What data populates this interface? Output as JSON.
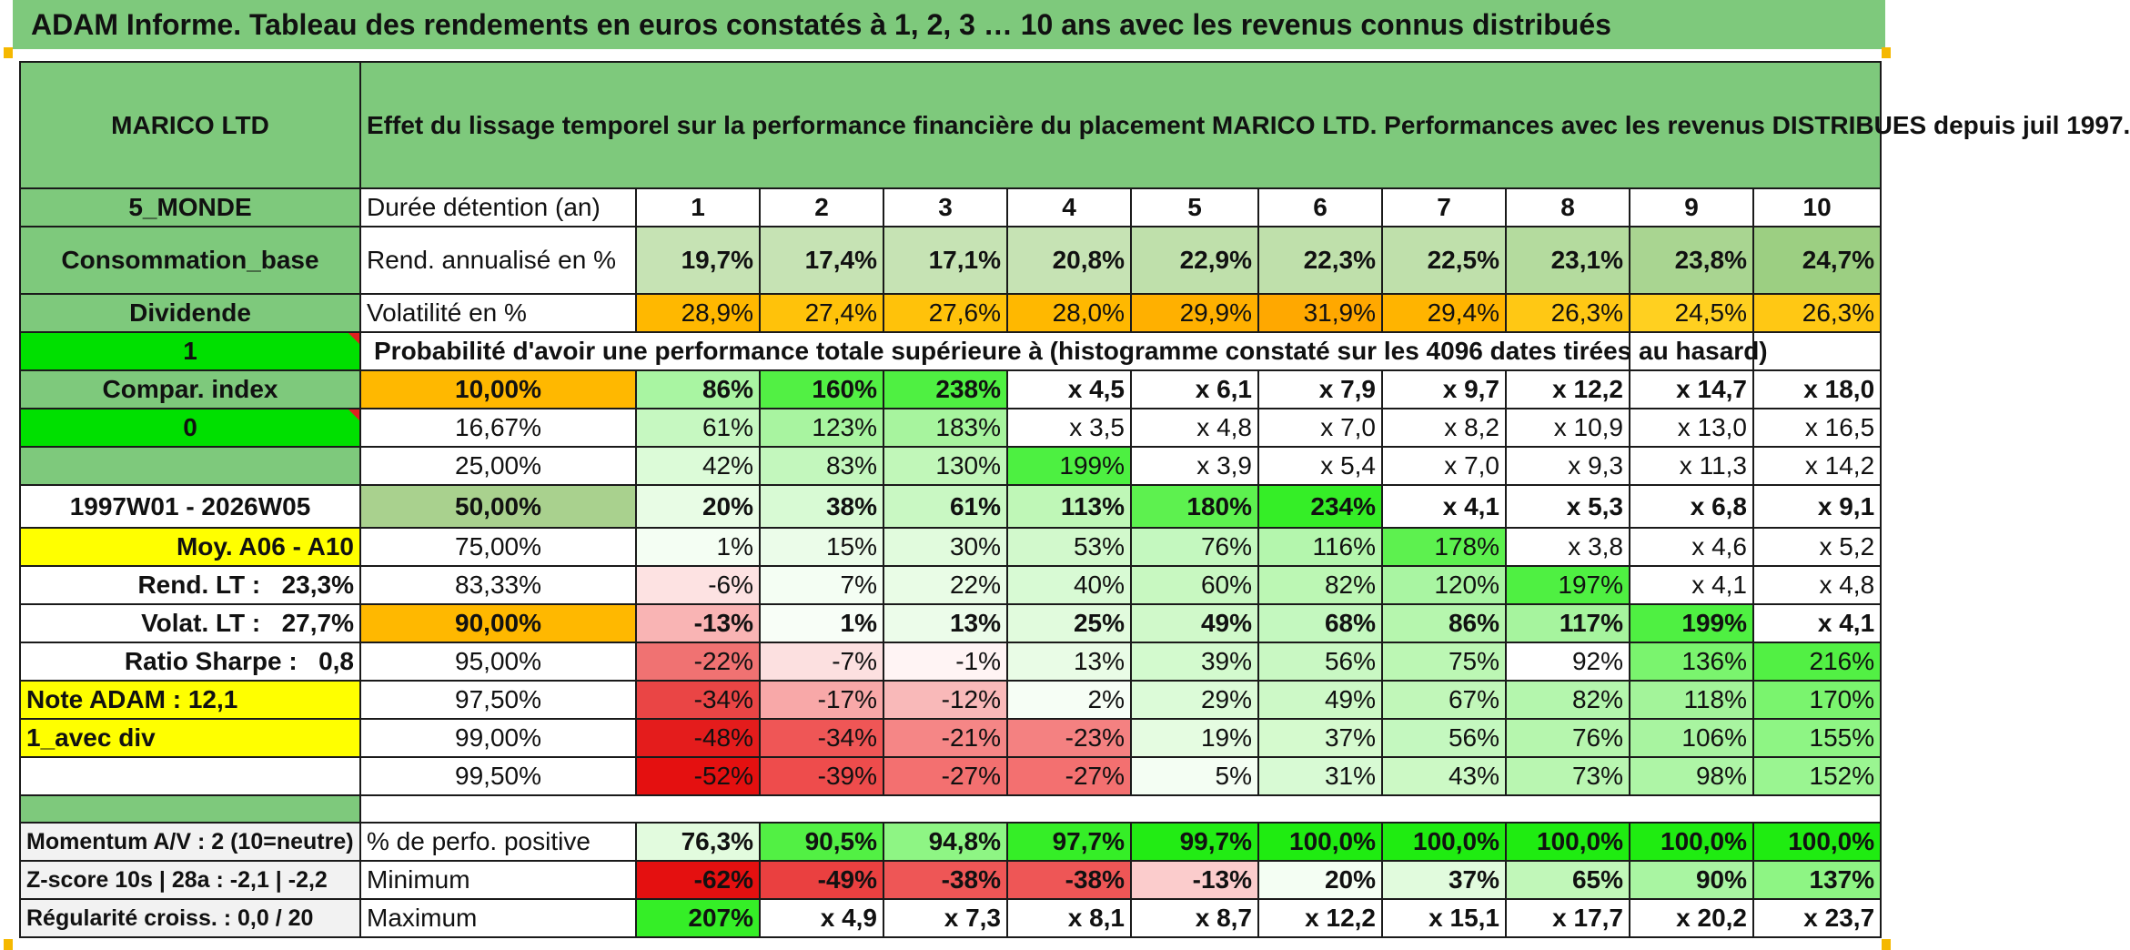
{
  "banner": {
    "title": "ADAM Informe. Tableau des rendements en euros constatés à 1, 2, 3 … 10 ans avec les revenus connus distribués"
  },
  "colors": {
    "green_header": "#7ec97c",
    "orange": "#ffb800",
    "yellow": "#ffff00",
    "bright_green": "#00e000",
    "red_text": "#e01010"
  },
  "left": {
    "name": "MARICO LTD",
    "zone": "5_MONDE",
    "sector": "Consommation_base",
    "dividend_label": "Dividende",
    "flag_value": "1",
    "compar_label": "Compar. index",
    "compar_value": "0",
    "period": "1997W01 - 2026W05",
    "moy_label": "Moy. A06 - A10",
    "rend_lt_label": "Rend. LT :",
    "rend_lt_value": "23,3%",
    "volat_lt_label": "Volat. LT :",
    "volat_lt_value": "27,7%",
    "sharpe_label": "Ratio Sharpe :",
    "sharpe_value": "0,8",
    "note": "Note ADAM : 12,1",
    "option": "1_avec div",
    "momentum": "Momentum A/V : 2 (10=neutre)",
    "zscore": "Z-score 10s | 28a : -2,1 | -2,2",
    "regularite": "Régularité croiss. : 0,0 / 20"
  },
  "header": {
    "description": "Effet du lissage temporel sur la performance financière du placement MARICO LTD. Performances avec les revenus DISTRIBUES depuis juil 1997.",
    "duration_label": "Durée détention (an)",
    "years": [
      "1",
      "2",
      "3",
      "4",
      "5",
      "6",
      "7",
      "8",
      "9",
      "10"
    ]
  },
  "rendement": {
    "label": "Rend. annualisé en %",
    "values": [
      "19,7%",
      "17,4%",
      "17,1%",
      "20,8%",
      "22,9%",
      "22,3%",
      "22,5%",
      "23,1%",
      "23,8%",
      "24,7%"
    ]
  },
  "volatilite": {
    "label": "Volatilité en %",
    "values": [
      "28,9%",
      "27,4%",
      "27,6%",
      "28,0%",
      "29,9%",
      "31,9%",
      "29,4%",
      "26,3%",
      "24,5%",
      "26,3%"
    ]
  },
  "probability_title": "Probabilité d'avoir une performance totale supérieure à (histogramme constaté sur les 4096 dates tirées au hasard)",
  "probability_rows": [
    {
      "pct": "10,00%",
      "values": [
        "86%",
        "160%",
        "238%",
        "x 4,5",
        "x 6,1",
        "x 7,9",
        "x 9,7",
        "x 12,2",
        "x 14,7",
        "x 18,0"
      ]
    },
    {
      "pct": "16,67%",
      "values": [
        "61%",
        "123%",
        "183%",
        "x 3,5",
        "x 4,8",
        "x 7,0",
        "x 8,2",
        "x 10,9",
        "x 13,0",
        "x 16,5"
      ]
    },
    {
      "pct": "25,00%",
      "values": [
        "42%",
        "83%",
        "130%",
        "199%",
        "x 3,9",
        "x 5,4",
        "x 7,0",
        "x 9,3",
        "x 11,3",
        "x 14,2"
      ]
    },
    {
      "pct": "50,00%",
      "values": [
        "20%",
        "38%",
        "61%",
        "113%",
        "180%",
        "234%",
        "x 4,1",
        "x 5,3",
        "x 6,8",
        "x 9,1"
      ]
    },
    {
      "pct": "75,00%",
      "values": [
        "1%",
        "15%",
        "30%",
        "53%",
        "76%",
        "116%",
        "178%",
        "x 3,8",
        "x 4,6",
        "x 5,2"
      ]
    },
    {
      "pct": "83,33%",
      "values": [
        "-6%",
        "7%",
        "22%",
        "40%",
        "60%",
        "82%",
        "120%",
        "197%",
        "x 4,1",
        "x 4,8"
      ]
    },
    {
      "pct": "90,00%",
      "values": [
        "-13%",
        "1%",
        "13%",
        "25%",
        "49%",
        "68%",
        "86%",
        "117%",
        "199%",
        "x 4,1"
      ]
    },
    {
      "pct": "95,00%",
      "values": [
        "-22%",
        "-7%",
        "-1%",
        "13%",
        "39%",
        "56%",
        "75%",
        "92%",
        "136%",
        "216%"
      ]
    },
    {
      "pct": "97,50%",
      "values": [
        "-34%",
        "-17%",
        "-12%",
        "2%",
        "29%",
        "49%",
        "67%",
        "82%",
        "118%",
        "170%"
      ]
    },
    {
      "pct": "99,00%",
      "values": [
        "-48%",
        "-34%",
        "-21%",
        "-23%",
        "19%",
        "37%",
        "56%",
        "76%",
        "106%",
        "155%"
      ]
    },
    {
      "pct": "99,50%",
      "values": [
        "-52%",
        "-39%",
        "-27%",
        "-27%",
        "5%",
        "31%",
        "43%",
        "73%",
        "98%",
        "152%"
      ]
    }
  ],
  "stats": {
    "positive": {
      "label": "% de perfo. positive",
      "values": [
        "76,3%",
        "90,5%",
        "94,8%",
        "97,7%",
        "99,7%",
        "100,0%",
        "100,0%",
        "100,0%",
        "100,0%",
        "100,0%"
      ]
    },
    "minimum": {
      "label": "Minimum",
      "values": [
        "-62%",
        "-49%",
        "-38%",
        "-38%",
        "-13%",
        "20%",
        "37%",
        "65%",
        "90%",
        "137%"
      ]
    },
    "maximum": {
      "label": "Maximum",
      "values": [
        "207%",
        "x 4,9",
        "x 7,3",
        "x 8,1",
        "x 8,7",
        "x 12,2",
        "x 15,1",
        "x 17,7",
        "x 20,2",
        "x 23,7"
      ]
    }
  }
}
